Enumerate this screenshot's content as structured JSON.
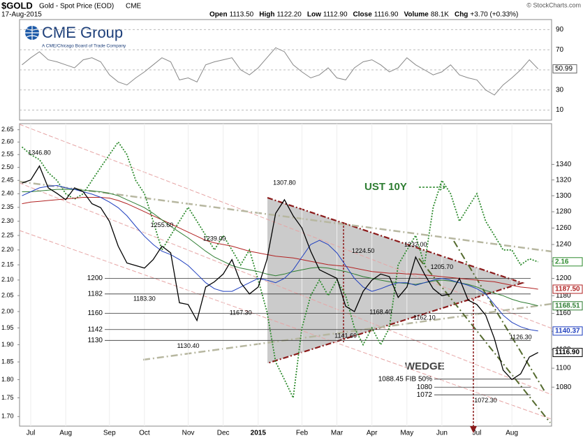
{
  "chart_data": {
    "type": "line",
    "header": {
      "symbol": "$GOLD",
      "name": "Gold - Spot Price (EOD)",
      "exchange": "CME",
      "date": "17-Aug-2015",
      "fields": [
        {
          "label": "Open",
          "value": "1113.50"
        },
        {
          "label": "High",
          "value": "1122.20"
        },
        {
          "label": "Low",
          "value": "1112.90"
        },
        {
          "label": "Close",
          "value": "1116.90"
        },
        {
          "label": "Volume",
          "value": "88.1K"
        },
        {
          "label": "Chg",
          "value": "+3.70 (+0.33%)"
        }
      ],
      "credit": "© StockCharts.com"
    },
    "logo": {
      "name": "CME Group",
      "tagline": "A CME/Chicago Board of Trade Company"
    },
    "categories": [
      null,
      "Jul",
      null,
      null,
      null,
      "Aug",
      null,
      null,
      null,
      null,
      "Sep",
      null,
      null,
      null,
      "Oct",
      null,
      null,
      null,
      null,
      "Nov",
      null,
      null,
      null,
      "Dec",
      null,
      null,
      null,
      "2015",
      null,
      null,
      null,
      null,
      "Feb",
      null,
      null,
      null,
      "Mar",
      null,
      null,
      null,
      "Apr",
      null,
      null,
      null,
      "May",
      null,
      null,
      null,
      "Jun",
      null,
      null,
      null,
      "Jul",
      null,
      null,
      null,
      "Aug",
      null,
      null,
      null
    ],
    "log_scale": true,
    "ylim": [
      1040,
      1394
    ],
    "yticks": [
      1080,
      1100,
      1120,
      1140,
      1160,
      1180,
      1200,
      1220,
      1240,
      1260,
      1280,
      1300,
      1320,
      1340
    ],
    "y2lim": [
      1.675,
      2.675
    ],
    "y2ticks": [
      2.65,
      {
        "value": 2.6,
        "label": "2.60"
      },
      2.55,
      {
        "value": 2.5,
        "label": "2.50"
      },
      2.45,
      {
        "value": 2.4,
        "label": "2.40"
      },
      2.35,
      {
        "value": 2.3,
        "label": "2.30"
      },
      2.25,
      {
        "value": 2.2,
        "label": "2.20"
      },
      2.15,
      {
        "value": 2.1,
        "label": "2.10"
      },
      2.05,
      {
        "value": 2,
        "label": "2.00"
      },
      1.95,
      {
        "value": 1.9,
        "label": "1.90"
      },
      1.85,
      {
        "value": 1.8,
        "label": "1.80"
      },
      1.75,
      {
        "value": 1.7,
        "label": "1.70"
      }
    ],
    "series": [
      {
        "name": "UST 10Y",
        "axis": "y2",
        "color": "#2e8b2e",
        "dashed": true,
        "values": [
          2.58,
          2.55,
          2.53,
          2.48,
          2.45,
          2.4,
          2.38,
          2.4,
          2.45,
          2.5,
          2.55,
          2.6,
          2.55,
          2.45,
          2.4,
          2.3,
          2.2,
          2.25,
          2.3,
          2.35,
          2.3,
          2.25,
          2.2,
          2.25,
          2.2,
          2.15,
          2.2,
          2.1,
          2.0,
          1.85,
          1.8,
          1.75,
          1.95,
          2.05,
          2.1,
          2.05,
          2.1,
          2.05,
          1.95,
          1.9,
          1.95,
          1.9,
          1.95,
          2.15,
          2.2,
          2.25,
          2.15,
          2.35,
          2.45,
          2.4,
          2.3,
          2.35,
          2.4,
          2.3,
          2.25,
          2.2,
          2.2,
          2.15,
          2.17,
          2.16
        ]
      },
      {
        "color": "#b22222",
        "values": [
          1290,
          1292,
          1293,
          1294,
          1295,
          1296,
          1297,
          1298,
          1298,
          1298,
          1297,
          1294,
          1290,
          1285,
          1280,
          1275,
          1270,
          1265,
          1260,
          1255,
          1250,
          1245,
          1242,
          1240,
          1238,
          1235,
          1232,
          1230,
          1228,
          1226,
          1225,
          1224,
          1222,
          1220,
          1218,
          1216,
          1215,
          1214,
          1212,
          1210,
          1208,
          1207,
          1206,
          1206,
          1205,
          1205,
          1204,
          1203,
          1202,
          1201,
          1200,
          1199,
          1198,
          1197,
          1196,
          1194,
          1192,
          1190,
          1189,
          1187.5
        ],
        "last_label": "1187.50"
      },
      {
        "color": "#2e7d32",
        "values": [
          1305,
          1305,
          1306,
          1307,
          1308,
          1308,
          1308,
          1307,
          1306,
          1305,
          1303,
          1300,
          1295,
          1290,
          1285,
          1278,
          1270,
          1262,
          1255,
          1248,
          1240,
          1232,
          1225,
          1220,
          1215,
          1212,
          1210,
          1208,
          1205,
          1203,
          1205,
          1208,
          1210,
          1212,
          1213,
          1212,
          1210,
          1208,
          1205,
          1202,
          1200,
          1198,
          1196,
          1195,
          1194,
          1193,
          1195,
          1197,
          1198,
          1197,
          1195,
          1193,
          1190,
          1186,
          1183,
          1180,
          1176,
          1173,
          1171,
          1168.51
        ]
      },
      {
        "color": "#1f3fbf",
        "values": [
          1300,
          1305,
          1310,
          1312,
          1313,
          1310,
          1308,
          1305,
          1302,
          1298,
          1292,
          1285,
          1275,
          1262,
          1250,
          1240,
          1232,
          1228,
          1222,
          1215,
          1205,
          1195,
          1188,
          1185,
          1185,
          1190,
          1195,
          1200,
          1198,
          1195,
          1200,
          1210,
          1225,
          1240,
          1245,
          1240,
          1230,
          1215,
          1200,
          1190,
          1185,
          1188,
          1192,
          1195,
          1195,
          1192,
          1195,
          1198,
          1200,
          1198,
          1195,
          1192,
          1188,
          1182,
          1170,
          1158,
          1150,
          1145,
          1142,
          1140.37
        ]
      },
      {
        "color": "#000000",
        "values": [
          1316,
          1320,
          1338,
          1310,
          1303,
          1295,
          1310,
          1305,
          1290,
          1285,
          1268,
          1238,
          1218,
          1215,
          1212,
          1222,
          1238,
          1230,
          1172,
          1170,
          1152,
          1190,
          1196,
          1205,
          1222,
          1195,
          1182,
          1190,
          1222,
          1278,
          1295,
          1275,
          1260,
          1232,
          1210,
          1205,
          1200,
          1168,
          1162,
          1185,
          1198,
          1205,
          1202,
          1178,
          1190,
          1225,
          1205,
          1188,
          1180,
          1182,
          1200,
          1175,
          1170,
          1158,
          1132,
          1098,
          1088,
          1094,
          1112,
          1116.9
        ],
        "last_label": "1116.90"
      }
    ],
    "levels": [
      1200,
      1182,
      1160,
      1142,
      1130,
      {
        "value": 1088.45,
        "label": "1088.45  FIB 50%"
      },
      1080,
      1072
    ],
    "pivots": [
      {
        "index": 2,
        "value": 1346.8,
        "label": "1346.80"
      },
      {
        "index": 30,
        "value": 1307.8,
        "label": "1307.80"
      },
      {
        "index": 16,
        "value": 1255.6,
        "label": "1255.60"
      },
      {
        "index": 22,
        "value": 1239,
        "label": "1239.00"
      },
      {
        "index": 14,
        "value": 1183.3,
        "label": "1183.30"
      },
      {
        "index": 19,
        "value": 1130.4,
        "label": "1130.40"
      },
      {
        "index": 25,
        "value": 1167.3,
        "label": "1167.30"
      },
      {
        "index": 37,
        "value": 1141.6,
        "label": "1141.60"
      },
      {
        "index": 41,
        "value": 1168.4,
        "label": "1168.40"
      },
      {
        "index": 39,
        "value": 1224.5,
        "label": "1224.50"
      },
      {
        "index": 45,
        "value": 1232,
        "label": "1232.00"
      },
      {
        "index": 48,
        "value": 1205.7,
        "label": "1205.70"
      },
      {
        "index": 46,
        "value": 1162.1,
        "label": "1162.10"
      },
      {
        "index": 57,
        "value": 1126.3,
        "label": "1126.30"
      },
      {
        "index": 53,
        "value": 1072.3,
        "label": "1072.30"
      }
    ],
    "annotations": [
      "WEDGE",
      "UST 10Y"
    ],
    "rsi": {
      "color": "#888888",
      "values": [
        55,
        62,
        68,
        60,
        58,
        55,
        52,
        60,
        62,
        58,
        45,
        38,
        35,
        42,
        48,
        55,
        62,
        58,
        40,
        42,
        38,
        55,
        58,
        60,
        62,
        50,
        45,
        52,
        62,
        72,
        68,
        55,
        48,
        42,
        45,
        52,
        42,
        40,
        52,
        58,
        60,
        55,
        48,
        52,
        62,
        55,
        50,
        45,
        48,
        55,
        45,
        42,
        40,
        30,
        25,
        35,
        42,
        50,
        60,
        50.99
      ],
      "ylim": [
        0,
        100
      ],
      "yticks": [
        10,
        30,
        50,
        70,
        90
      ]
    }
  }
}
